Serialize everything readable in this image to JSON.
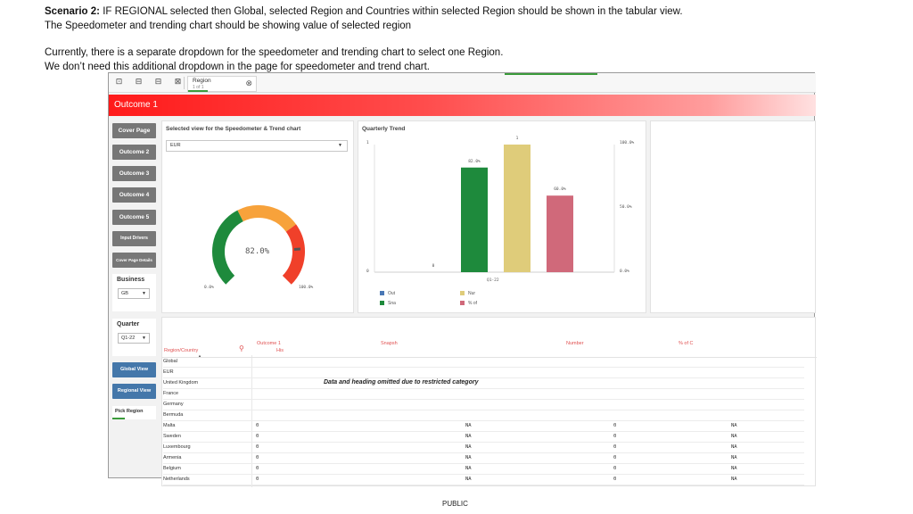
{
  "notes": {
    "line1_bold": "Scenario 2:",
    "line1_rest": " IF REGIONAL selected then Global, selected Region and Countries within selected Region should be shown in the tabular view.",
    "line2": "The Speedometer and trending chart should be showing value of selected region",
    "line3": "Currently, there is a separate dropdown for the speedometer and trending chart to select one Region.",
    "line4": "We don’t need this additional dropdown in the page for speedometer and trend chart."
  },
  "toolbar": {
    "icons": [
      "selection-icon",
      "back-icon",
      "forward-icon",
      "clear-icon"
    ],
    "chip_title": "Region",
    "chip_sub": "1 of 1",
    "chip_close": "⊗"
  },
  "banner": {
    "title": "Outcome 1"
  },
  "nav": {
    "cover_page": "Cover Page",
    "outcome2": "Outcome 2",
    "outcome3": "Outcome 3",
    "outcome4": "Outcome 4",
    "outcome5": "Outcome 5",
    "input_drivers": "Input Drivers",
    "cover_page_details": "Cover Page Details",
    "global_view": "Global View",
    "regional_view": "Regional View",
    "pick_region": "Pick Region"
  },
  "filters": {
    "business_label": "Business",
    "business_value": "GB",
    "quarter_label": "Quarter",
    "quarter_value": "Q1-22",
    "arrow": "▼"
  },
  "speedometer": {
    "title": "Selected view for the Speedometer & Trend chart",
    "dropdown_value": "EUR",
    "value_text": "82.0%",
    "value": 0.82,
    "min_label": "0.0%",
    "max_label": "100.0%",
    "colors": {
      "low": "#1e8a3c",
      "mid": "#f7a23b",
      "high": "#f0402a",
      "needle": "#555555"
    }
  },
  "trend": {
    "title": "Quarterly Trend",
    "left_top": "1",
    "left_bottom": "0",
    "right_top": "100.0%",
    "right_mid": "50.0%",
    "right_bottom": "0.0%",
    "category": "Q1-22",
    "legend": [
      {
        "label": "Out",
        "color": "#4a78b5"
      },
      {
        "label": "Nur",
        "color": "#dfcc7a"
      },
      {
        "label": "Sna",
        "color": "#1e8a3c"
      },
      {
        "label": "% of",
        "color": "#d0697a"
      }
    ]
  },
  "chart_data": {
    "type": "bar",
    "categories": [
      "Q1-22"
    ],
    "series": [
      {
        "name": "Out",
        "values": [
          0
        ],
        "label": "0",
        "axis": "left"
      },
      {
        "name": "Sna",
        "values": [
          0.82
        ],
        "label": "82.0%",
        "axis": "right"
      },
      {
        "name": "Nur",
        "values": [
          1
        ],
        "label": "1",
        "axis": "left"
      },
      {
        "name": "% of",
        "values": [
          0.6
        ],
        "label": "60.0%",
        "axis": "right"
      }
    ],
    "title": "Quarterly Trend",
    "ylim_left": [
      0,
      1
    ],
    "ylim_right": [
      0,
      1
    ]
  },
  "table": {
    "headers": {
      "region_country": "Region/Country",
      "outcome": "Outcome 1",
      "outcome_sub": "His",
      "snapshot": "Snapsh",
      "number": "Number",
      "pct": "% of C"
    },
    "sort_arrow": "▲",
    "search_icon": "⚲",
    "omitted_note": "Data and heading omitted due to restricted category",
    "rows": [
      {
        "name": "Global",
        "v1": "",
        "v2": "",
        "v3": "",
        "v4": ""
      },
      {
        "name": "EUR",
        "v1": "",
        "v2": "",
        "v3": "",
        "v4": ""
      },
      {
        "name": "United Kingdom",
        "v1": "",
        "v2": "",
        "v3": "",
        "v4": ""
      },
      {
        "name": "France",
        "v1": "",
        "v2": "",
        "v3": "",
        "v4": ""
      },
      {
        "name": "Germany",
        "v1": "",
        "v2": "",
        "v3": "",
        "v4": ""
      },
      {
        "name": "Bermuda",
        "v1": "",
        "v2": "",
        "v3": "",
        "v4": ""
      },
      {
        "name": "Malta",
        "v1": "0",
        "v2": "NA",
        "v3": "0",
        "v4": "NA"
      },
      {
        "name": "Sweden",
        "v1": "0",
        "v2": "NA",
        "v3": "0",
        "v4": "NA"
      },
      {
        "name": "Luxembourg",
        "v1": "0",
        "v2": "NA",
        "v3": "0",
        "v4": "NA"
      },
      {
        "name": "Armenia",
        "v1": "0",
        "v2": "NA",
        "v3": "0",
        "v4": "NA"
      },
      {
        "name": "Belgium",
        "v1": "0",
        "v2": "NA",
        "v3": "0",
        "v4": "NA"
      },
      {
        "name": "Netherlands",
        "v1": "0",
        "v2": "NA",
        "v3": "0",
        "v4": "NA"
      }
    ]
  },
  "footer": {
    "text": "PUBLIC"
  }
}
